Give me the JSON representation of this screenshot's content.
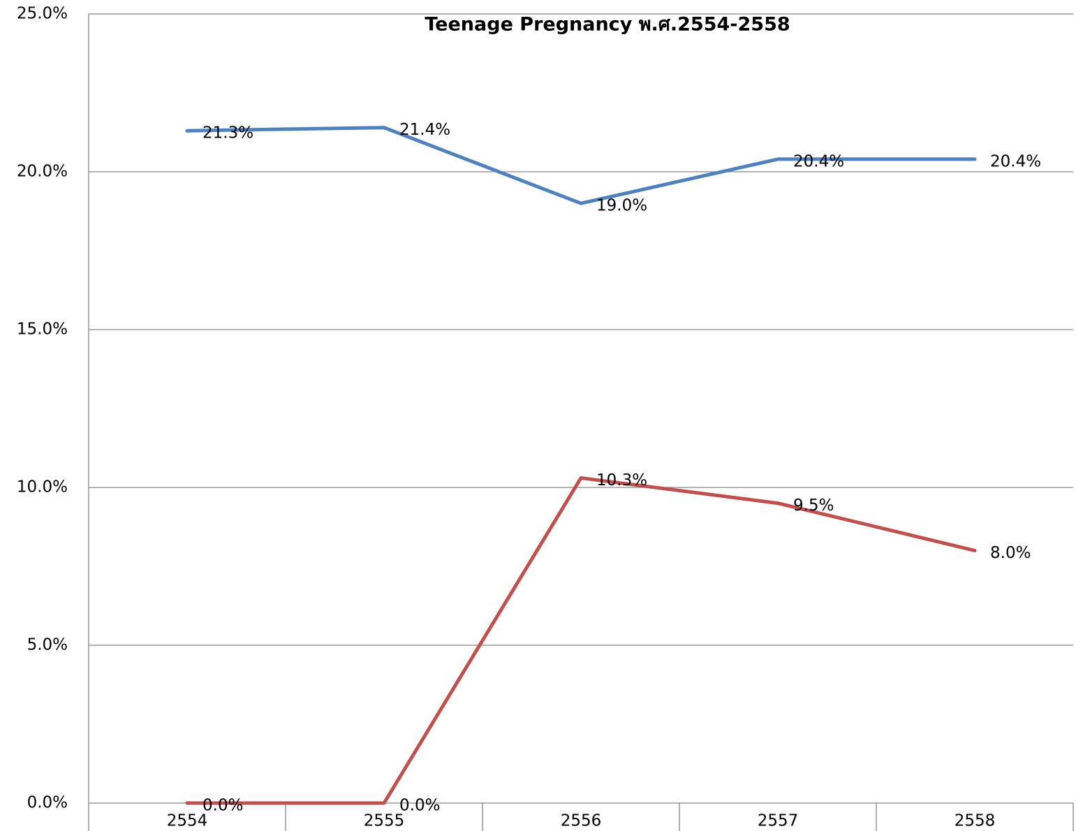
{
  "chart_data": {
    "type": "line",
    "title": "Teenage Pregnancy  พ.ศ.2554-2558",
    "categories": [
      "2554",
      "2555",
      "2556",
      "2557",
      "2558"
    ],
    "series": [
      {
        "color": "#4f81bd",
        "values": [
          21.3,
          21.4,
          19.0,
          20.4,
          20.4
        ],
        "value_labels": [
          "21.3%",
          "21.4%",
          "19.0%",
          "20.4%",
          "20.4%"
        ]
      },
      {
        "color": "#c0504d",
        "values": [
          0,
          0,
          10.3,
          9.5,
          8.0
        ],
        "value_labels": [
          "0.0%",
          "0.0%",
          "10.3%",
          "9.5%",
          "8.0%"
        ]
      }
    ],
    "ylim": [
      0,
      25
    ],
    "yticks": [
      {
        "value": 0,
        "label": "0.0%"
      },
      {
        "value": 5,
        "label": "5.0%"
      },
      {
        "value": 10,
        "label": "10.0%"
      },
      {
        "value": 15,
        "label": "15.0%"
      },
      {
        "value": 20,
        "label": "20.0%"
      },
      {
        "value": 25,
        "label": "25.0%"
      }
    ],
    "grid": true
  }
}
